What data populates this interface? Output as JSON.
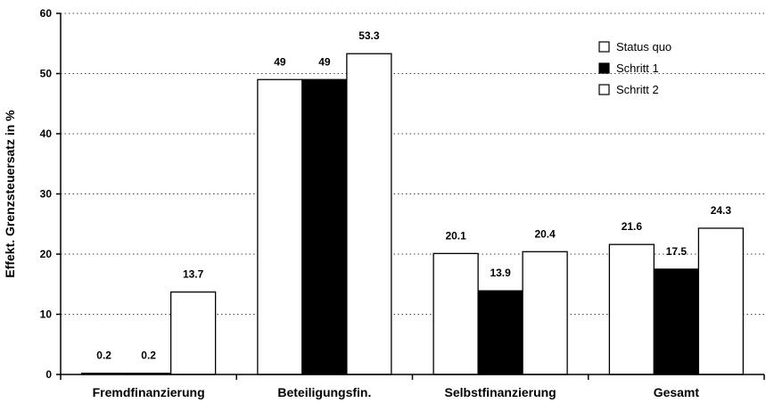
{
  "chart_data": {
    "type": "bar",
    "ylabel": "Effekt. Grenzsteuersatz in %",
    "xlabel": "",
    "ylim": [
      0,
      60
    ],
    "yticks": [
      0,
      10,
      20,
      30,
      40,
      50,
      60
    ],
    "grid": "horizontal dotted",
    "legend_position": "top-right",
    "categories": [
      "Fremdfinanzierung",
      "Beteiligungsfin.",
      "Selbstfinanzierung",
      "Gesamt"
    ],
    "series": [
      {
        "name": "Status quo",
        "values": [
          0.2,
          49,
          20.1,
          21.6
        ],
        "labels": [
          "0.2",
          "49",
          "20.1",
          "21.6"
        ],
        "color": "#ffffff"
      },
      {
        "name": "Schritt 1",
        "values": [
          0.2,
          49,
          13.9,
          17.5
        ],
        "labels": [
          "0.2",
          "49",
          "13.9",
          "17.5"
        ],
        "color": "#000000"
      },
      {
        "name": "Schritt 2",
        "values": [
          13.7,
          53.3,
          20.4,
          24.3
        ],
        "labels": [
          "13.7",
          "53.3",
          "20.4",
          "24.3"
        ],
        "color": "#ffffff"
      }
    ]
  }
}
